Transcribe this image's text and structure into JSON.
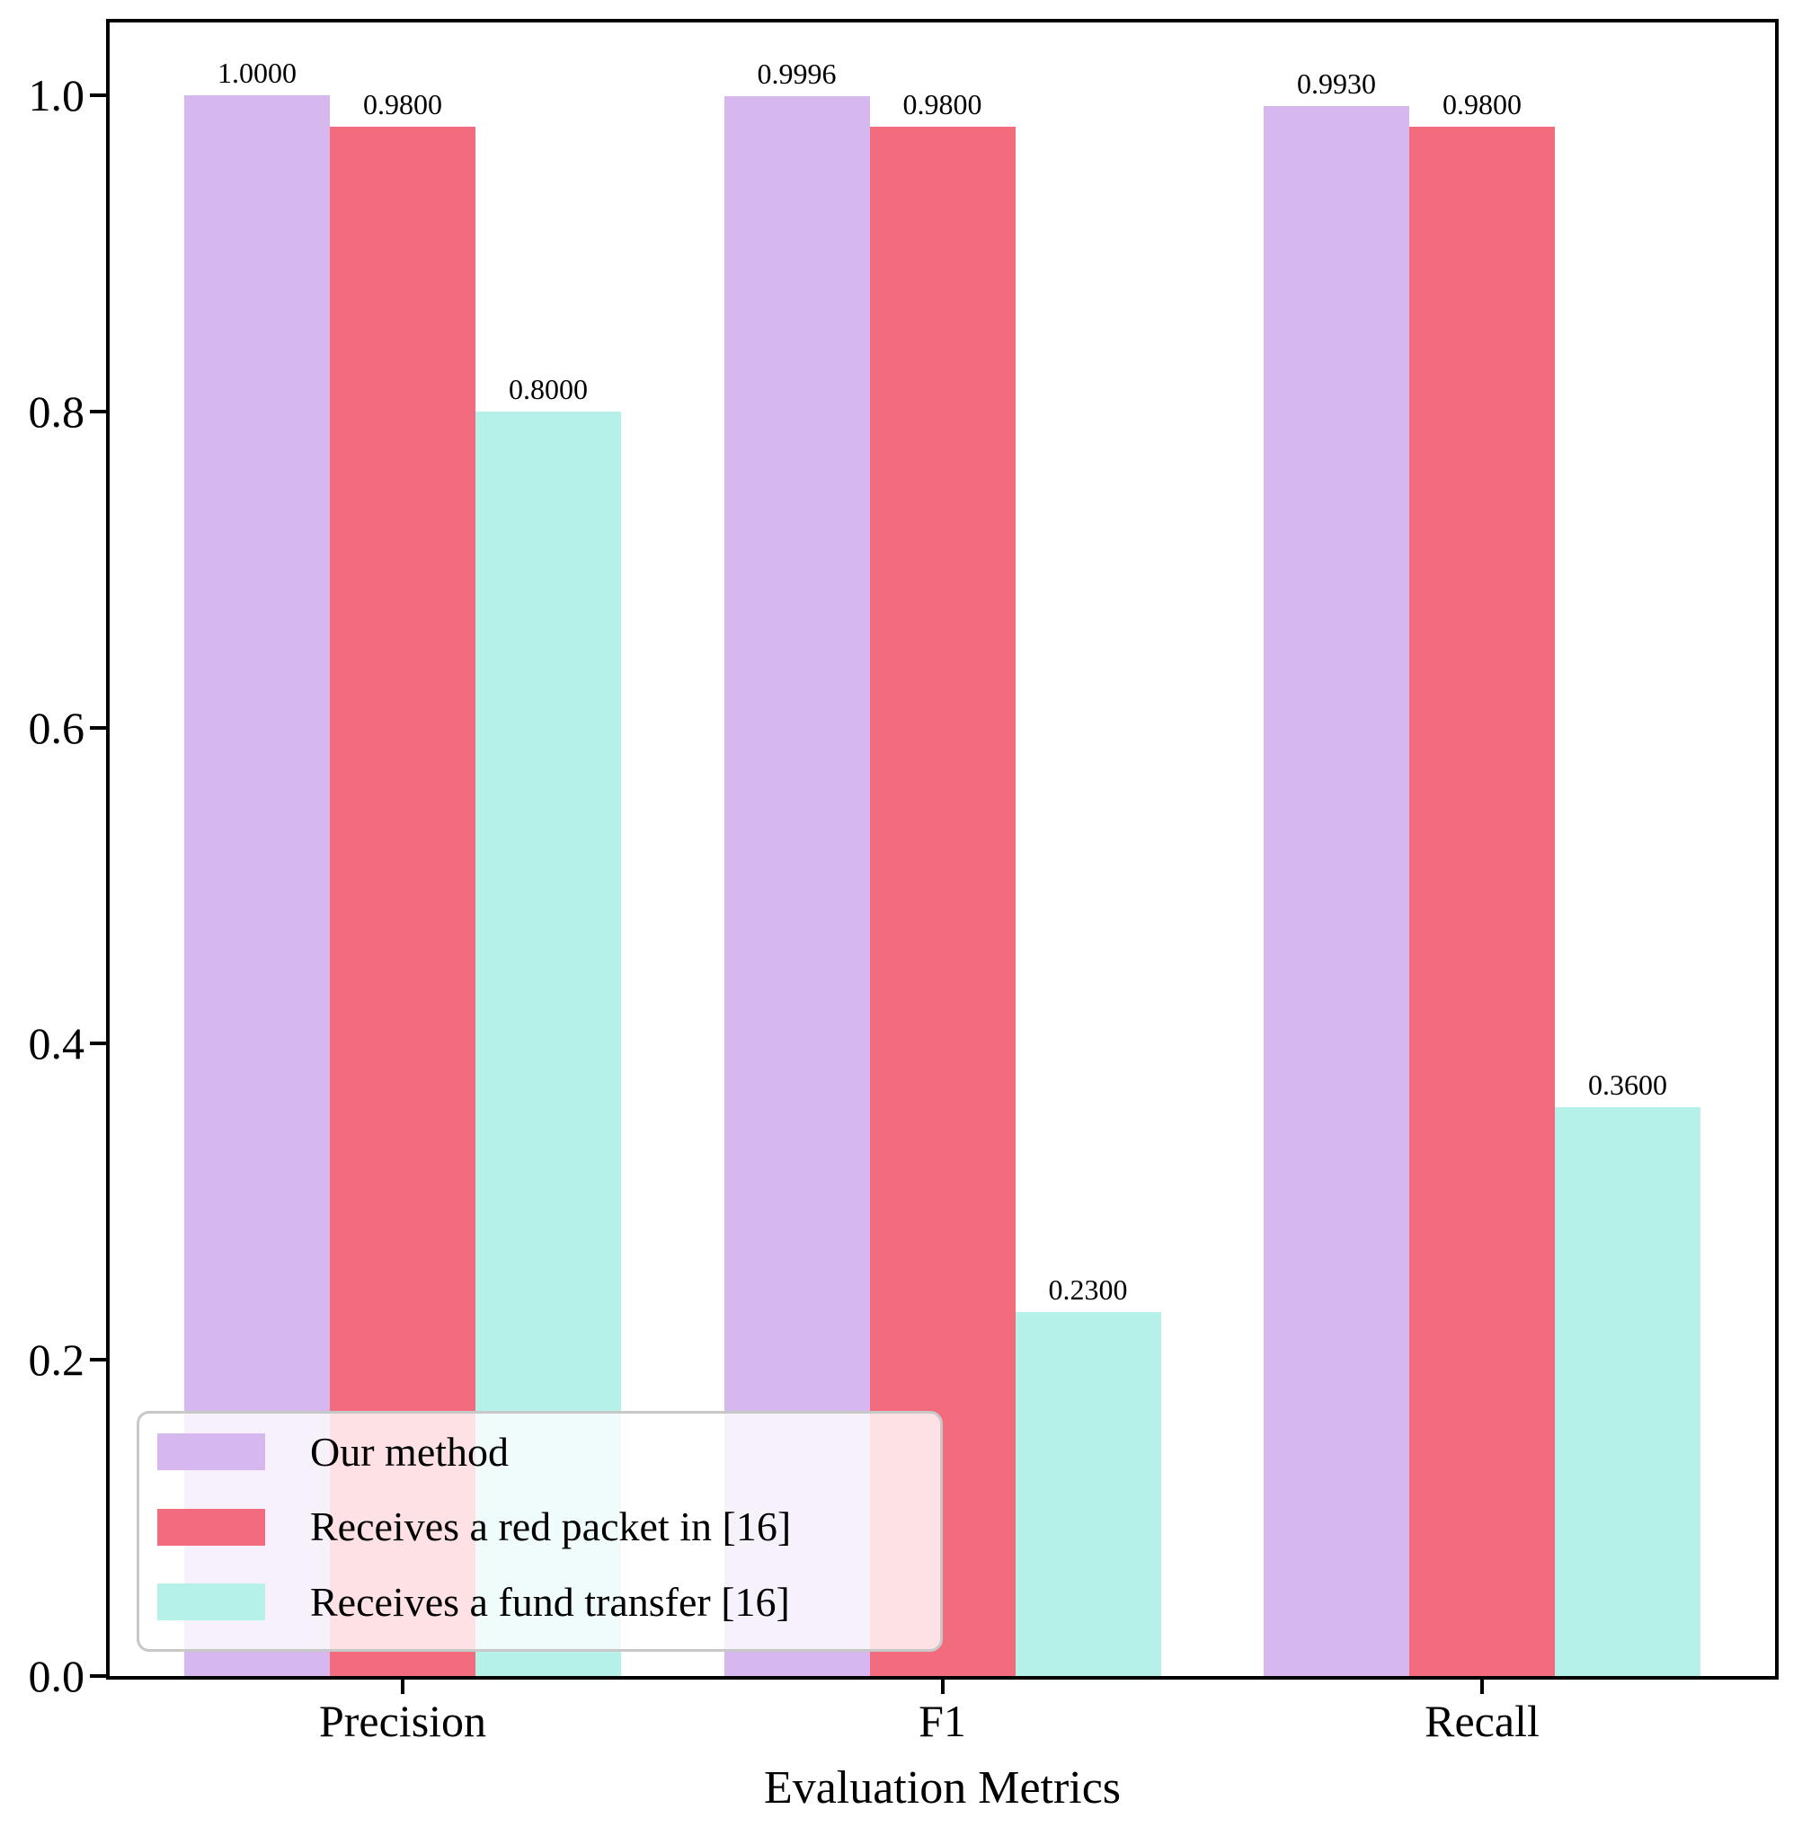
{
  "chart_data": {
    "type": "bar",
    "title": "",
    "xlabel": "Evaluation Metrics",
    "ylabel": "",
    "categories": [
      "Precision",
      "F1",
      "Recall"
    ],
    "series": [
      {
        "name": "Our method",
        "color": "#d6b7ee",
        "values": [
          1.0,
          0.9996,
          0.993
        ]
      },
      {
        "name": "Receives a red packet in [16]",
        "color": "#f26c7d",
        "values": [
          0.98,
          0.98,
          0.98
        ]
      },
      {
        "name": "Receives a fund transfer [16]",
        "color": "#b5f0e9",
        "values": [
          0.8,
          0.23,
          0.36
        ]
      }
    ],
    "bar_value_label_decimals": 4,
    "ylim": [
      0.0,
      1.046
    ],
    "yticks": [
      {
        "value": 0.0,
        "label": "0.0"
      },
      {
        "value": 0.2,
        "label": "0.2"
      },
      {
        "value": 0.4,
        "label": "0.4"
      },
      {
        "value": 0.6,
        "label": "0.6"
      },
      {
        "value": 0.8,
        "label": "0.8"
      },
      {
        "value": 1.0,
        "label": "1.0"
      }
    ],
    "grid": false,
    "legend_position": "lower left"
  },
  "colors": {
    "axis": "#000000",
    "text": "#000000",
    "legend_border": "#c8c8c8",
    "legend_background": "rgba(255,255,255,0.8)"
  }
}
